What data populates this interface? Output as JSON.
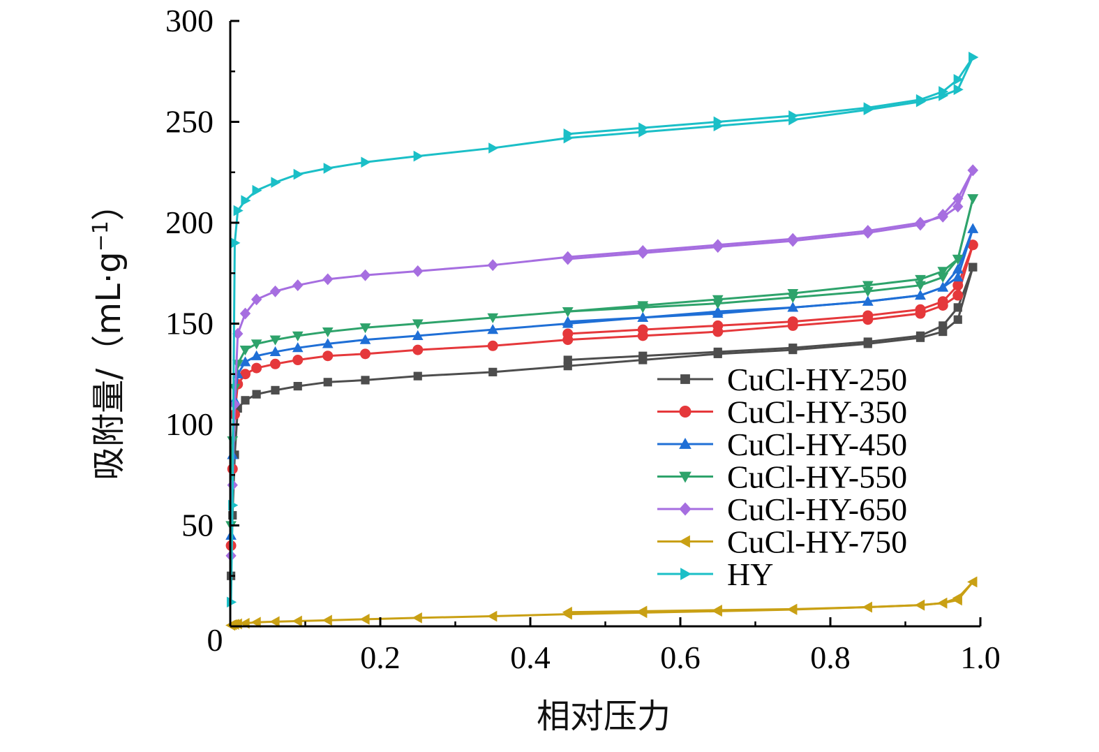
{
  "chart_data": {
    "type": "line",
    "title": "",
    "xlabel": "相对压力",
    "ylabel": "吸附量/（mL·g",
    "ylabel_superscript": "−1",
    "ylabel_close": "）",
    "xlim": [
      0,
      1.0
    ],
    "ylim": [
      0,
      300
    ],
    "x_origin_label": "0",
    "x_ticks": [
      0.2,
      0.4,
      0.6,
      0.8,
      1.0
    ],
    "x_tick_labels": [
      "0.2",
      "0.4",
      "0.6",
      "0.8",
      "1.0"
    ],
    "y_ticks": [
      50,
      100,
      150,
      200,
      250,
      300
    ],
    "y_tick_labels": [
      "50",
      "100",
      "150",
      "200",
      "250",
      "300"
    ],
    "grid": false,
    "legend_position": "lower-right",
    "series": [
      {
        "name": "CuCl-HY-250",
        "color": "#4d4d4d",
        "marker": "square",
        "x": [
          0.001,
          0.003,
          0.006,
          0.01,
          0.02,
          0.035,
          0.06,
          0.09,
          0.13,
          0.18,
          0.25,
          0.35,
          0.45,
          0.55,
          0.65,
          0.75,
          0.85,
          0.92,
          0.95,
          0.97,
          0.99
        ],
        "adsorption": [
          25,
          55,
          85,
          108,
          112,
          115,
          117,
          119,
          121,
          122,
          124,
          126,
          129,
          132,
          135,
          137,
          140,
          143,
          146,
          152,
          178
        ],
        "desorption": [
          132,
          134,
          136,
          138,
          141,
          144,
          149,
          158,
          178
        ]
      },
      {
        "name": "CuCl-HY-350",
        "color": "#e5383b",
        "marker": "circle",
        "x": [
          0.001,
          0.003,
          0.006,
          0.01,
          0.02,
          0.035,
          0.06,
          0.09,
          0.13,
          0.18,
          0.25,
          0.35,
          0.45,
          0.55,
          0.65,
          0.75,
          0.85,
          0.92,
          0.95,
          0.97,
          0.99
        ],
        "adsorption": [
          40,
          78,
          105,
          120,
          125,
          128,
          130,
          132,
          134,
          135,
          137,
          139,
          142,
          144,
          146,
          149,
          152,
          155,
          159,
          164,
          189
        ],
        "desorption": [
          145,
          147,
          149,
          151,
          154,
          157,
          161,
          169,
          189
        ]
      },
      {
        "name": "CuCl-HY-450",
        "color": "#1f6fd6",
        "marker": "triangle-up",
        "x": [
          0.001,
          0.003,
          0.006,
          0.01,
          0.02,
          0.035,
          0.06,
          0.09,
          0.13,
          0.18,
          0.25,
          0.35,
          0.45,
          0.55,
          0.65,
          0.75,
          0.85,
          0.92,
          0.95,
          0.97,
          0.99
        ],
        "adsorption": [
          45,
          85,
          112,
          125,
          131,
          134,
          136,
          138,
          140,
          142,
          144,
          147,
          150,
          153,
          156,
          158,
          161,
          164,
          168,
          173,
          197
        ],
        "desorption": [
          151,
          153,
          155,
          158,
          161,
          164,
          168,
          177,
          197
        ]
      },
      {
        "name": "CuCl-HY-550",
        "color": "#2ea36b",
        "marker": "triangle-down",
        "x": [
          0.001,
          0.003,
          0.006,
          0.01,
          0.02,
          0.035,
          0.06,
          0.09,
          0.13,
          0.18,
          0.25,
          0.35,
          0.45,
          0.55,
          0.65,
          0.75,
          0.85,
          0.92,
          0.95,
          0.97,
          0.99
        ],
        "adsorption": [
          50,
          92,
          118,
          130,
          137,
          140,
          142,
          144,
          146,
          148,
          150,
          153,
          156,
          159,
          162,
          165,
          169,
          172,
          176,
          182,
          212
        ],
        "desorption": [
          156,
          158,
          160,
          163,
          166,
          169,
          173,
          182,
          212
        ]
      },
      {
        "name": "CuCl-HY-650",
        "color": "#a66ee0",
        "marker": "diamond",
        "x": [
          0.001,
          0.003,
          0.006,
          0.01,
          0.02,
          0.035,
          0.06,
          0.09,
          0.13,
          0.18,
          0.25,
          0.35,
          0.45,
          0.55,
          0.65,
          0.75,
          0.85,
          0.92,
          0.95,
          0.97,
          0.99
        ],
        "adsorption": [
          35,
          70,
          110,
          145,
          155,
          162,
          166,
          169,
          172,
          174,
          176,
          179,
          183,
          186,
          189,
          192,
          196,
          200,
          203,
          208,
          226
        ],
        "desorption": [
          182,
          185,
          188,
          191,
          195,
          199,
          204,
          212,
          226
        ]
      },
      {
        "name": "CuCl-HY-750",
        "color": "#c9a014",
        "marker": "triangle-left",
        "x": [
          0.001,
          0.003,
          0.006,
          0.01,
          0.02,
          0.035,
          0.06,
          0.09,
          0.13,
          0.18,
          0.25,
          0.35,
          0.45,
          0.55,
          0.65,
          0.75,
          0.85,
          0.92,
          0.95,
          0.97,
          0.99
        ],
        "adsorption": [
          0.5,
          0.8,
          1,
          1.2,
          1.5,
          2,
          2.3,
          2.6,
          3,
          3.5,
          4.2,
          5,
          6,
          6.8,
          7.5,
          8.3,
          9.5,
          10.5,
          11.5,
          13,
          22
        ],
        "desorption": [
          7,
          7.5,
          8,
          8.5,
          9.5,
          10.5,
          11.5,
          14,
          22
        ]
      },
      {
        "name": "HY",
        "color": "#1bbfc7",
        "marker": "triangle-right",
        "x": [
          0.001,
          0.003,
          0.006,
          0.01,
          0.02,
          0.035,
          0.06,
          0.09,
          0.13,
          0.18,
          0.25,
          0.35,
          0.45,
          0.55,
          0.65,
          0.75,
          0.85,
          0.92,
          0.95,
          0.97,
          0.99
        ],
        "adsorption": [
          12,
          60,
          190,
          206,
          211,
          216,
          220,
          224,
          227,
          230,
          233,
          237,
          242,
          245,
          248,
          251,
          256,
          260,
          263,
          266,
          282
        ],
        "desorption": [
          244,
          247,
          250,
          253,
          257,
          261,
          265,
          271,
          282
        ]
      }
    ],
    "desorption_x": [
      0.45,
      0.55,
      0.65,
      0.75,
      0.85,
      0.92,
      0.95,
      0.97,
      0.99
    ]
  }
}
